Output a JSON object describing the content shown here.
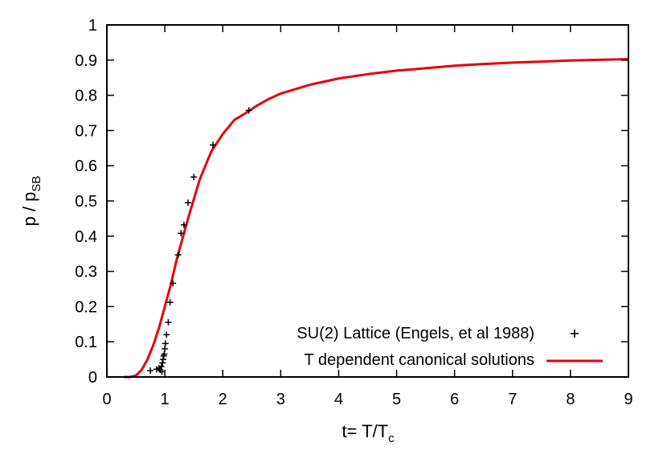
{
  "chart_data": {
    "type": "scatter",
    "xlabel": "t= T/T",
    "xlabel_subscript": "c",
    "ylabel": "p / p",
    "ylabel_subscript": "SB",
    "xlim": [
      0,
      9
    ],
    "ylim": [
      0,
      1
    ],
    "x_ticks": [
      "0",
      "1",
      "2",
      "3",
      "4",
      "5",
      "6",
      "7",
      "8",
      "9"
    ],
    "y_ticks": [
      "0",
      "0.1",
      "0.2",
      "0.3",
      "0.4",
      "0.5",
      "0.6",
      "0.7",
      "0.8",
      "0.9",
      "1"
    ],
    "grid": false,
    "legend_position": "bottom-right",
    "series": [
      {
        "name": "SU(2) Lattice (Engels, et al 1988)",
        "type": "scatter",
        "marker": "plus",
        "color": "#000000",
        "points": [
          [
            0.75,
            0.018
          ],
          [
            0.86,
            0.022
          ],
          [
            0.9,
            0.025
          ],
          [
            0.92,
            0.02
          ],
          [
            0.94,
            0.03
          ],
          [
            0.95,
            0.015
          ],
          [
            0.96,
            0.04
          ],
          [
            0.97,
            0.05
          ],
          [
            0.98,
            0.06
          ],
          [
            0.99,
            0.065
          ],
          [
            1.0,
            0.08
          ],
          [
            1.01,
            0.095
          ],
          [
            1.03,
            0.12
          ],
          [
            1.06,
            0.155
          ],
          [
            1.09,
            0.212
          ],
          [
            1.14,
            0.266
          ],
          [
            1.23,
            0.347
          ],
          [
            1.28,
            0.408
          ],
          [
            1.33,
            0.432
          ],
          [
            1.4,
            0.495
          ],
          [
            1.5,
            0.568
          ],
          [
            1.83,
            0.659
          ],
          [
            2.45,
            0.757
          ]
        ]
      },
      {
        "name": "T dependent canonical solutions",
        "type": "line",
        "color": "#e8000b",
        "points": [
          [
            0.3,
            0.0
          ],
          [
            0.4,
            0.0
          ],
          [
            0.5,
            0.004
          ],
          [
            0.6,
            0.02
          ],
          [
            0.7,
            0.05
          ],
          [
            0.8,
            0.09
          ],
          [
            0.9,
            0.14
          ],
          [
            1.0,
            0.2
          ],
          [
            1.1,
            0.26
          ],
          [
            1.2,
            0.33
          ],
          [
            1.3,
            0.39
          ],
          [
            1.4,
            0.45
          ],
          [
            1.6,
            0.56
          ],
          [
            1.8,
            0.64
          ],
          [
            2.0,
            0.69
          ],
          [
            2.2,
            0.73
          ],
          [
            2.4,
            0.75
          ],
          [
            2.6,
            0.772
          ],
          [
            2.8,
            0.79
          ],
          [
            3.0,
            0.805
          ],
          [
            3.5,
            0.83
          ],
          [
            4.0,
            0.848
          ],
          [
            4.5,
            0.86
          ],
          [
            5.0,
            0.87
          ],
          [
            5.5,
            0.877
          ],
          [
            6.0,
            0.884
          ],
          [
            6.5,
            0.889
          ],
          [
            7.0,
            0.893
          ],
          [
            7.5,
            0.896
          ],
          [
            8.0,
            0.899
          ],
          [
            8.5,
            0.901
          ],
          [
            9.0,
            0.903
          ]
        ]
      }
    ]
  }
}
